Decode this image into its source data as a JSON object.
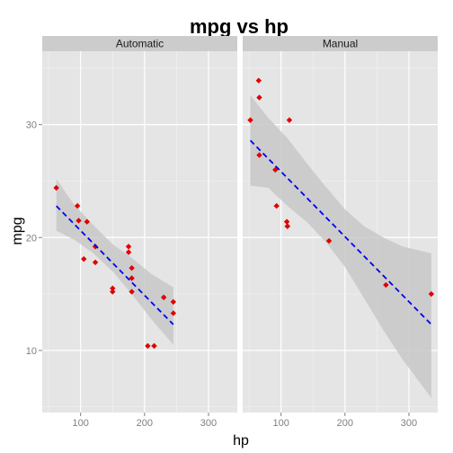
{
  "chart_data": {
    "type": "scatter",
    "title": "mpg vs hp",
    "xlabel": "hp",
    "ylabel": "mpg",
    "xlim": [
      40,
      345
    ],
    "ylim": [
      4.5,
      36.5
    ],
    "x_ticks": [
      100,
      200,
      300
    ],
    "y_ticks": [
      10,
      20,
      30
    ],
    "grid": true,
    "point_color": "#e00000",
    "fit_line_color": "#0000ee",
    "ribbon_color": "#c8c8c8",
    "panel_background": "#e5e5e5",
    "strip_background": "#cccccc",
    "facets": [
      {
        "label": "Automatic",
        "points": [
          [
            110,
            21.4
          ],
          [
            175,
            18.7
          ],
          [
            105,
            18.1
          ],
          [
            245,
            14.3
          ],
          [
            62,
            24.4
          ],
          [
            95,
            22.8
          ],
          [
            123,
            19.2
          ],
          [
            123,
            17.8
          ],
          [
            180,
            16.4
          ],
          [
            180,
            17.3
          ],
          [
            180,
            15.2
          ],
          [
            205,
            10.4
          ],
          [
            215,
            10.4
          ],
          [
            230,
            14.7
          ],
          [
            97,
            21.5
          ],
          [
            150,
            15.5
          ],
          [
            150,
            15.2
          ],
          [
            245,
            13.3
          ],
          [
            175,
            19.2
          ]
        ],
        "fit": {
          "x": [
            62,
            245
          ],
          "y": [
            22.8,
            12.3
          ]
        },
        "ribbon": {
          "x": [
            62,
            90,
            120,
            150,
            180,
            210,
            245
          ],
          "upper": [
            25.2,
            22.9,
            21.1,
            19.4,
            18.2,
            16.8,
            15.6
          ],
          "lower": [
            20.6,
            19.8,
            18.6,
            17.0,
            15.0,
            12.8,
            10.5
          ]
        }
      },
      {
        "label": "Manual",
        "points": [
          [
            110,
            21.0
          ],
          [
            110,
            21.0
          ],
          [
            93,
            22.8
          ],
          [
            66,
            32.4
          ],
          [
            52,
            30.4
          ],
          [
            65,
            33.9
          ],
          [
            66,
            27.3
          ],
          [
            91,
            26.0
          ],
          [
            113,
            30.4
          ],
          [
            264,
            15.8
          ],
          [
            175,
            19.7
          ],
          [
            335,
            15.0
          ],
          [
            109,
            21.4
          ]
        ],
        "fit": {
          "x": [
            52,
            335
          ],
          "y": [
            28.6,
            12.3
          ]
        },
        "ribbon": {
          "x": [
            52,
            80,
            110,
            140,
            170,
            200,
            230,
            260,
            290,
            335
          ],
          "upper": [
            32.6,
            30.6,
            28.8,
            26.6,
            24.5,
            22.5,
            21.0,
            20.0,
            19.2,
            18.6
          ],
          "lower": [
            24.6,
            24.4,
            22.8,
            21.4,
            19.6,
            17.4,
            14.6,
            11.8,
            9.2,
            5.8
          ]
        }
      }
    ]
  }
}
